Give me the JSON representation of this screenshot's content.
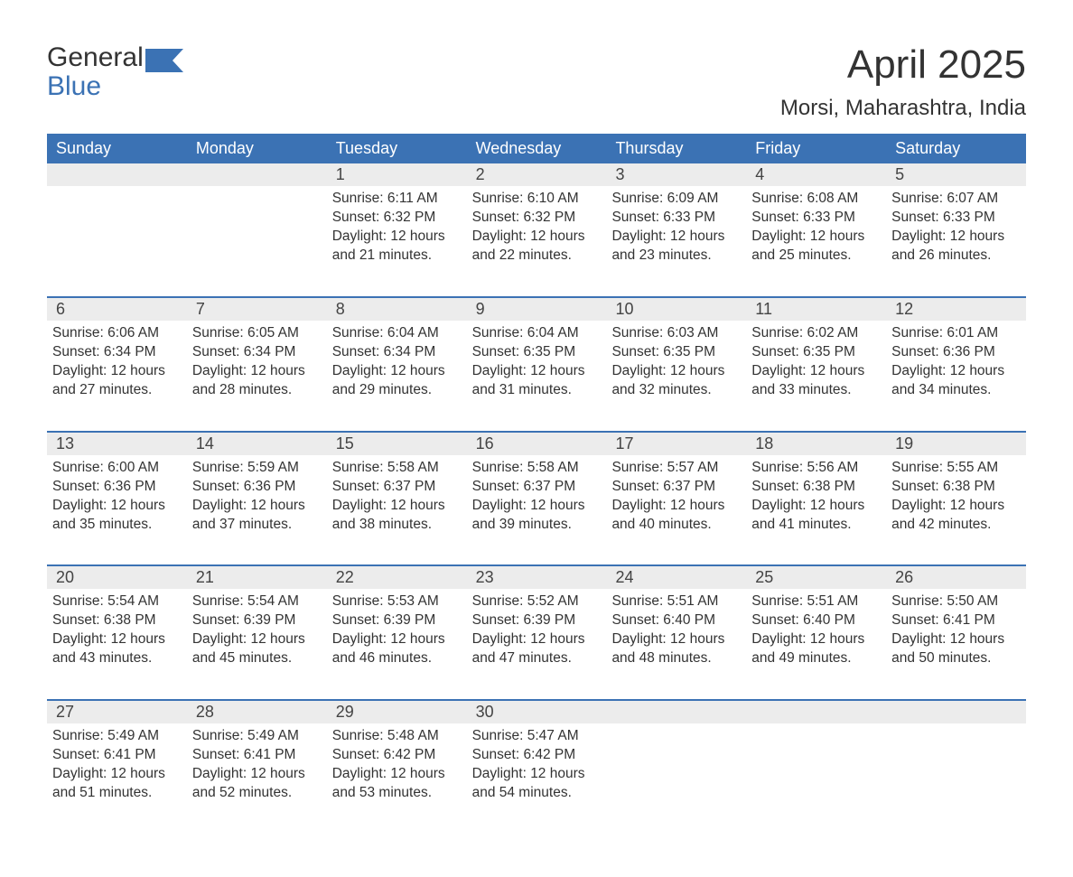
{
  "logo": {
    "line1": "General",
    "line2": "Blue"
  },
  "title": "April 2025",
  "location": "Morsi, Maharashtra, India",
  "colors": {
    "header_bg": "#3b72b4",
    "header_text": "#ffffff",
    "strip_bg": "#ececec",
    "text": "#333333",
    "accent": "#3b72b4"
  },
  "dow": [
    "Sunday",
    "Monday",
    "Tuesday",
    "Wednesday",
    "Thursday",
    "Friday",
    "Saturday"
  ],
  "weeks": [
    [
      null,
      null,
      {
        "n": "1",
        "sr": "6:11 AM",
        "ss": "6:32 PM",
        "dl": "12 hours and 21 minutes."
      },
      {
        "n": "2",
        "sr": "6:10 AM",
        "ss": "6:32 PM",
        "dl": "12 hours and 22 minutes."
      },
      {
        "n": "3",
        "sr": "6:09 AM",
        "ss": "6:33 PM",
        "dl": "12 hours and 23 minutes."
      },
      {
        "n": "4",
        "sr": "6:08 AM",
        "ss": "6:33 PM",
        "dl": "12 hours and 25 minutes."
      },
      {
        "n": "5",
        "sr": "6:07 AM",
        "ss": "6:33 PM",
        "dl": "12 hours and 26 minutes."
      }
    ],
    [
      {
        "n": "6",
        "sr": "6:06 AM",
        "ss": "6:34 PM",
        "dl": "12 hours and 27 minutes."
      },
      {
        "n": "7",
        "sr": "6:05 AM",
        "ss": "6:34 PM",
        "dl": "12 hours and 28 minutes."
      },
      {
        "n": "8",
        "sr": "6:04 AM",
        "ss": "6:34 PM",
        "dl": "12 hours and 29 minutes."
      },
      {
        "n": "9",
        "sr": "6:04 AM",
        "ss": "6:35 PM",
        "dl": "12 hours and 31 minutes."
      },
      {
        "n": "10",
        "sr": "6:03 AM",
        "ss": "6:35 PM",
        "dl": "12 hours and 32 minutes."
      },
      {
        "n": "11",
        "sr": "6:02 AM",
        "ss": "6:35 PM",
        "dl": "12 hours and 33 minutes."
      },
      {
        "n": "12",
        "sr": "6:01 AM",
        "ss": "6:36 PM",
        "dl": "12 hours and 34 minutes."
      }
    ],
    [
      {
        "n": "13",
        "sr": "6:00 AM",
        "ss": "6:36 PM",
        "dl": "12 hours and 35 minutes."
      },
      {
        "n": "14",
        "sr": "5:59 AM",
        "ss": "6:36 PM",
        "dl": "12 hours and 37 minutes."
      },
      {
        "n": "15",
        "sr": "5:58 AM",
        "ss": "6:37 PM",
        "dl": "12 hours and 38 minutes."
      },
      {
        "n": "16",
        "sr": "5:58 AM",
        "ss": "6:37 PM",
        "dl": "12 hours and 39 minutes."
      },
      {
        "n": "17",
        "sr": "5:57 AM",
        "ss": "6:37 PM",
        "dl": "12 hours and 40 minutes."
      },
      {
        "n": "18",
        "sr": "5:56 AM",
        "ss": "6:38 PM",
        "dl": "12 hours and 41 minutes."
      },
      {
        "n": "19",
        "sr": "5:55 AM",
        "ss": "6:38 PM",
        "dl": "12 hours and 42 minutes."
      }
    ],
    [
      {
        "n": "20",
        "sr": "5:54 AM",
        "ss": "6:38 PM",
        "dl": "12 hours and 43 minutes."
      },
      {
        "n": "21",
        "sr": "5:54 AM",
        "ss": "6:39 PM",
        "dl": "12 hours and 45 minutes."
      },
      {
        "n": "22",
        "sr": "5:53 AM",
        "ss": "6:39 PM",
        "dl": "12 hours and 46 minutes."
      },
      {
        "n": "23",
        "sr": "5:52 AM",
        "ss": "6:39 PM",
        "dl": "12 hours and 47 minutes."
      },
      {
        "n": "24",
        "sr": "5:51 AM",
        "ss": "6:40 PM",
        "dl": "12 hours and 48 minutes."
      },
      {
        "n": "25",
        "sr": "5:51 AM",
        "ss": "6:40 PM",
        "dl": "12 hours and 49 minutes."
      },
      {
        "n": "26",
        "sr": "5:50 AM",
        "ss": "6:41 PM",
        "dl": "12 hours and 50 minutes."
      }
    ],
    [
      {
        "n": "27",
        "sr": "5:49 AM",
        "ss": "6:41 PM",
        "dl": "12 hours and 51 minutes."
      },
      {
        "n": "28",
        "sr": "5:49 AM",
        "ss": "6:41 PM",
        "dl": "12 hours and 52 minutes."
      },
      {
        "n": "29",
        "sr": "5:48 AM",
        "ss": "6:42 PM",
        "dl": "12 hours and 53 minutes."
      },
      {
        "n": "30",
        "sr": "5:47 AM",
        "ss": "6:42 PM",
        "dl": "12 hours and 54 minutes."
      },
      null,
      null,
      null
    ]
  ],
  "labels": {
    "sunrise": "Sunrise: ",
    "sunset": "Sunset: ",
    "daylight": "Daylight: "
  }
}
